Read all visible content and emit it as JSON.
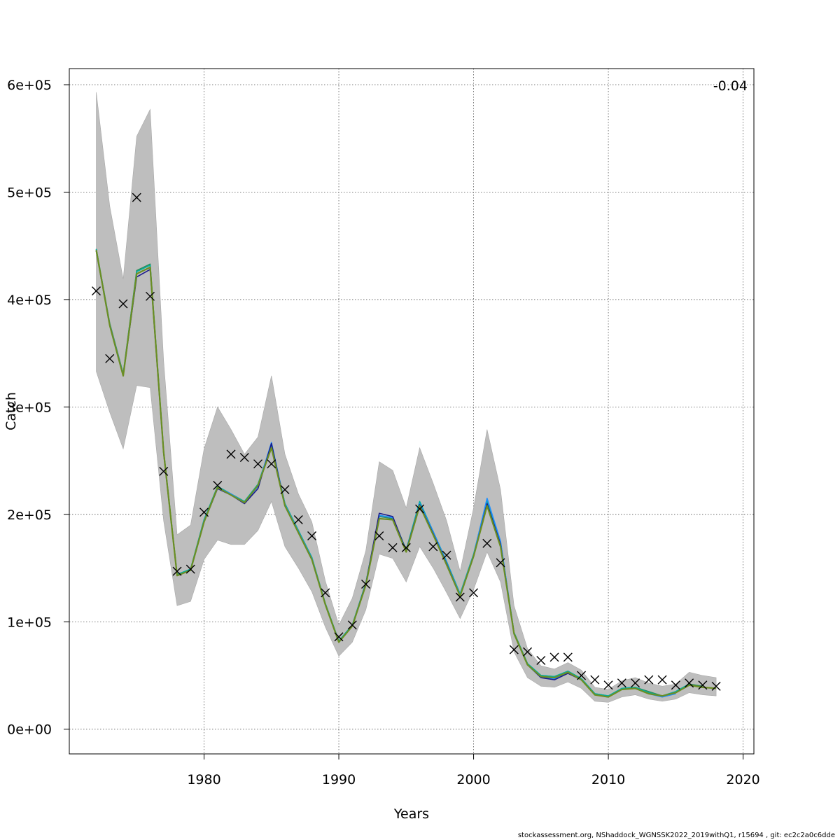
{
  "chart_data": {
    "type": "line",
    "xlabel": "Years",
    "ylabel": "Catch",
    "annotation": "-0.04",
    "footer": "stockassessment.org, NShaddock_WGNSSK2022_2019withQ1, r15694 , git: ec2c2a0c6dde",
    "xlim": [
      1970,
      2020.8
    ],
    "ylim": [
      -23000,
      615000
    ],
    "x_ticks": [
      1980,
      1990,
      2000,
      2010,
      2020
    ],
    "y_ticks": [
      0,
      100000,
      200000,
      300000,
      400000,
      500000,
      600000
    ],
    "y_tick_labels": [
      "0e+00",
      "1e+05",
      "2e+05",
      "3e+05",
      "4e+05",
      "5e+05",
      "6e+05"
    ],
    "grid": true,
    "colors": {
      "band": "#bebebe",
      "fit": "#6b8e23",
      "peel_1": "#1a1a8c",
      "peel_2": "#1e90ff",
      "peel_3": "#00b0a0",
      "peel_4": "#2e8b57",
      "observed": "#000000"
    },
    "years": [
      1972,
      1973,
      1974,
      1975,
      1976,
      1977,
      1978,
      1979,
      1980,
      1981,
      1982,
      1983,
      1984,
      1985,
      1986,
      1987,
      1988,
      1989,
      1990,
      1991,
      1992,
      1993,
      1994,
      1995,
      1996,
      1997,
      1998,
      1999,
      2000,
      2001,
      2002,
      2003,
      2004,
      2005,
      2006,
      2007,
      2008,
      2009,
      2010,
      2011,
      2012,
      2013,
      2014,
      2015,
      2016,
      2017,
      2018
    ],
    "observed": [
      408000,
      345000,
      396000,
      495000,
      403000,
      240000,
      147000,
      149000,
      202000,
      227000,
      256000,
      253000,
      247000,
      247000,
      223000,
      195000,
      180000,
      127000,
      86000,
      97000,
      135000,
      180000,
      169000,
      169000,
      205000,
      170000,
      162000,
      123000,
      127000,
      173000,
      155000,
      74000,
      72000,
      64000,
      67000,
      67000,
      50000,
      46000,
      41000,
      43000,
      43000,
      46000,
      46000,
      41000,
      43000,
      41000,
      40000
    ],
    "fit": [
      446000,
      376000,
      329000,
      424000,
      430000,
      258000,
      143000,
      148000,
      193000,
      225000,
      218000,
      211000,
      227000,
      262000,
      208000,
      183000,
      158000,
      116000,
      81000,
      96000,
      134000,
      196000,
      195000,
      165000,
      208000,
      181000,
      153000,
      124000,
      161000,
      208000,
      170000,
      89000,
      60000,
      49000,
      48000,
      53000,
      46000,
      32000,
      30000,
      37000,
      38000,
      33000,
      31000,
      34000,
      41000,
      39000,
      38000
    ],
    "band_upper": [
      593000,
      487000,
      419000,
      552000,
      577000,
      343000,
      181000,
      190000,
      261000,
      300000,
      279000,
      256000,
      272000,
      329000,
      256000,
      219000,
      193000,
      138000,
      97000,
      122000,
      166000,
      249000,
      241000,
      206000,
      262000,
      229000,
      194000,
      147000,
      206000,
      279000,
      223000,
      115000,
      75000,
      59000,
      56000,
      62000,
      55000,
      39000,
      37000,
      45000,
      48000,
      43000,
      40000,
      42000,
      53000,
      50000,
      48000
    ],
    "band_lower": [
      333000,
      295000,
      261000,
      320000,
      318000,
      194000,
      115000,
      119000,
      158000,
      176000,
      172000,
      172000,
      185000,
      212000,
      170000,
      150000,
      128000,
      95000,
      68000,
      81000,
      111000,
      163000,
      159000,
      137000,
      170000,
      150000,
      127000,
      103000,
      130000,
      165000,
      137000,
      72000,
      48000,
      40000,
      39000,
      44000,
      38000,
      26000,
      25000,
      30000,
      32000,
      28000,
      26000,
      28000,
      34000,
      32000,
      31000
    ],
    "peels": [
      {
        "color_key": "peel_4",
        "years_from": 1972,
        "values": [
          447000,
          378000,
          331000,
          427000,
          433000,
          259000,
          144000,
          149000,
          195000,
          226000,
          219000,
          212000,
          228000,
          265000,
          210000,
          185000,
          159000,
          117000,
          82000,
          97000,
          135000,
          198000,
          196000,
          166000,
          211000,
          183000,
          155000,
          125000,
          162000,
          212000,
          173000,
          90000,
          61000,
          50000,
          49000,
          54000,
          47000,
          33000,
          31000,
          38000,
          39000,
          35000,
          31000,
          35000,
          42000,
          40000
        ]
      },
      {
        "color_key": "peel_3",
        "years_from": 1972,
        "values": [
          447000,
          377000,
          330000,
          426000,
          432000,
          259000,
          144000,
          149000,
          195000,
          226000,
          219000,
          212000,
          228000,
          265000,
          210000,
          185000,
          160000,
          117000,
          82000,
          97000,
          136000,
          199000,
          197000,
          167000,
          212000,
          184000,
          156000,
          126000,
          163000,
          213000,
          174000,
          90000,
          61000,
          50000,
          49000,
          54000,
          47000,
          33000,
          31000,
          38000,
          39000,
          34000,
          31000,
          35000,
          42000
        ]
      },
      {
        "color_key": "peel_2",
        "years_from": 1972,
        "values": [
          446000,
          377000,
          330000,
          424000,
          430000,
          258000,
          143000,
          148000,
          194000,
          225000,
          219000,
          211000,
          226000,
          267000,
          209000,
          184000,
          159000,
          116000,
          81000,
          96000,
          135000,
          199000,
          197000,
          166000,
          210000,
          184000,
          155000,
          125000,
          162000,
          215000,
          175000,
          89000,
          60000,
          48000,
          47000,
          53000,
          46000,
          32000,
          30000,
          37000,
          38000,
          33000,
          30000,
          33000
        ]
      },
      {
        "color_key": "peel_1",
        "years_from": 1972,
        "values": [
          445000,
          376000,
          329000,
          421000,
          428000,
          257000,
          143000,
          148000,
          193000,
          224000,
          218000,
          210000,
          224000,
          266000,
          208000,
          183000,
          158000,
          116000,
          81000,
          96000,
          135000,
          201000,
          198000,
          166000,
          209000,
          182000,
          154000,
          124000,
          161000,
          210000,
          172000,
          89000,
          60000,
          48000,
          46000,
          52000,
          46000,
          32000,
          30000,
          37000,
          38000,
          33000,
          31000
        ]
      }
    ]
  }
}
